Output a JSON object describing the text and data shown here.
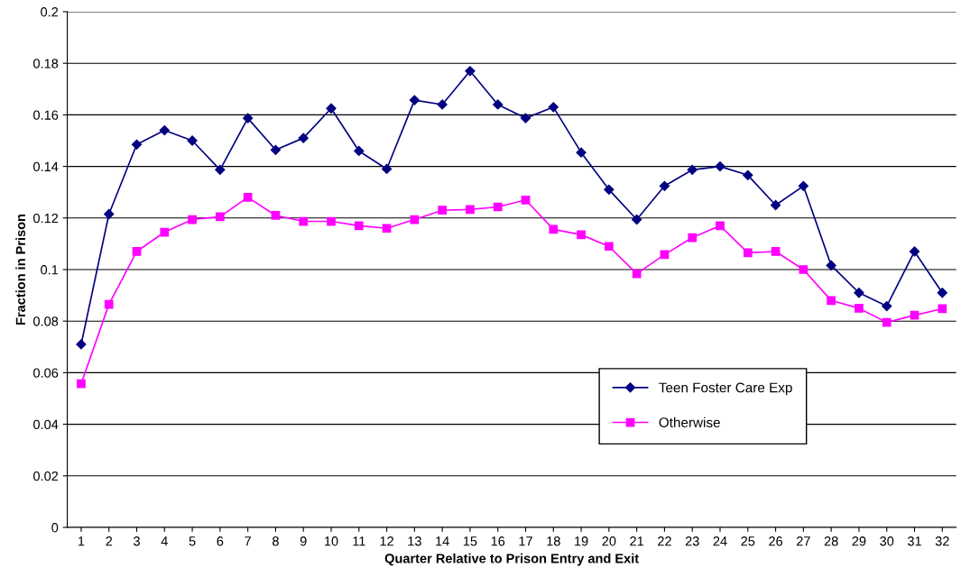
{
  "chart_data": {
    "type": "line",
    "xlabel": "Quarter Relative to Prison Entry and Exit",
    "ylabel": "Fraction in Prison",
    "categories": [
      "1",
      "2",
      "3",
      "4",
      "5",
      "6",
      "7",
      "8",
      "9",
      "10",
      "11",
      "12",
      "13",
      "14",
      "15",
      "16",
      "17",
      "18",
      "19",
      "20",
      "21",
      "22",
      "23",
      "24",
      "25",
      "26",
      "27",
      "28",
      "29",
      "30",
      "31",
      "32"
    ],
    "series": [
      {
        "name": "Teen Foster Care Exp",
        "color": "#000080",
        "marker": "diamond",
        "values": [
          0.071,
          0.1215,
          0.1485,
          0.154,
          0.15,
          0.1387,
          0.1587,
          0.1464,
          0.151,
          0.1625,
          0.146,
          0.139,
          0.1657,
          0.164,
          0.177,
          0.164,
          0.1587,
          0.163,
          0.1454,
          0.131,
          0.1194,
          0.1324,
          0.1387,
          0.14,
          0.1366,
          0.125,
          0.1324,
          0.1016,
          0.091,
          0.0858,
          0.107,
          0.091
        ]
      },
      {
        "name": "Otherwise",
        "color": "#ff00ff",
        "marker": "square",
        "values": [
          0.0557,
          0.0865,
          0.107,
          0.1145,
          0.1194,
          0.1205,
          0.128,
          0.121,
          0.1187,
          0.1187,
          0.117,
          0.116,
          0.1194,
          0.123,
          0.1233,
          0.1243,
          0.127,
          0.1156,
          0.1135,
          0.109,
          0.0984,
          0.1058,
          0.1124,
          0.117,
          0.1065,
          0.107,
          0.1,
          0.088,
          0.085,
          0.0795,
          0.0823,
          0.0848
        ]
      }
    ],
    "ylim": [
      0,
      0.2
    ],
    "yticks": [
      0,
      0.02,
      0.04,
      0.06,
      0.08,
      0.1,
      0.12,
      0.14,
      0.16,
      0.18,
      0.2
    ],
    "grid": "y",
    "legend": "bottom right",
    "line_style": "solid"
  }
}
